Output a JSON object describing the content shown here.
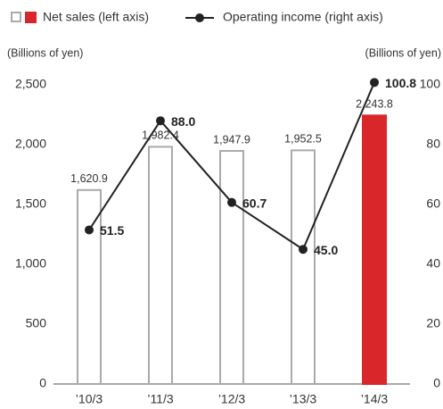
{
  "chart_data": {
    "type": "bar",
    "categories": [
      "’10/3",
      "’11/3",
      "’12/3",
      "’13/3",
      "’14/3"
    ],
    "series": [
      {
        "name": "Net sales (left axis)",
        "type": "bar",
        "axis": "y",
        "colors": [
          "#ffffff",
          "#ffffff",
          "#ffffff",
          "#ffffff",
          "#d9262b"
        ],
        "edgecolor": "#aaaaaa",
        "values": [
          1620.9,
          1982.4,
          1947.9,
          1952.5,
          2243.8
        ],
        "value_labels": [
          "1,620.9",
          "1,982.4",
          "1,947.9",
          "1,952.5",
          "2,243.8"
        ]
      },
      {
        "name": "Operating income (right axis)",
        "type": "line",
        "axis": "y2",
        "color": "#222222",
        "values": [
          51.5,
          88.0,
          60.7,
          45.0,
          100.8
        ],
        "value_labels": [
          "51.5",
          "88.0",
          "60.7",
          "45.0",
          "100.8"
        ]
      }
    ],
    "ylabel": "(Billions of yen)",
    "y2label": "(Billions of yen)",
    "ylim": [
      0,
      2500
    ],
    "yticks": [
      0,
      500,
      {
        "value": 1000,
        "label": "1,000"
      },
      {
        "value": 1500,
        "label": "1,500"
      },
      {
        "value": 2000,
        "label": "2,000"
      },
      {
        "value": 2500,
        "label": "2,500"
      }
    ],
    "y2lim": [
      0,
      100
    ],
    "y2ticks": [
      0,
      20,
      40,
      60,
      80,
      100
    ]
  }
}
